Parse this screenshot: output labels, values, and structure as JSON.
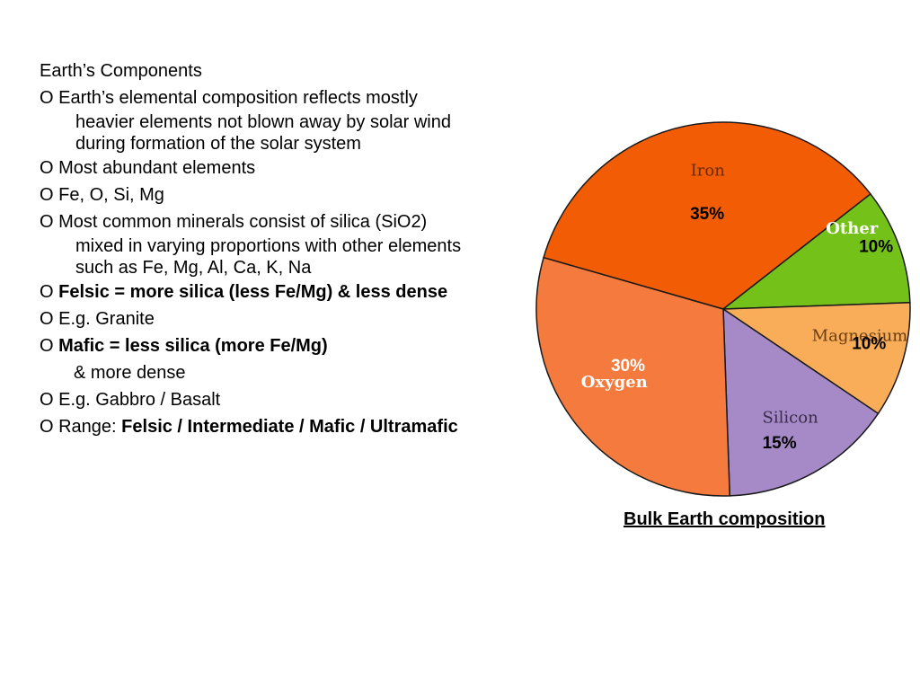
{
  "slide": {
    "heading": "Earth’s Components",
    "p1_a": "O Earth’s elemental composition reflects mostly",
    "p1_b": "heavier elements not blown away by solar wind",
    "p1_c": "during formation of the solar system",
    "p2": "O Most abundant elements",
    "p3": "O Fe, O, Si, Mg",
    "p4_a": "O Most common minerals consist of silica (SiO2)",
    "p4_b": "mixed in varying proportions with other elements",
    "p4_c": "such as Fe, Mg, Al, Ca, K, Na",
    "p5_prefix": "O ",
    "p5_bold": "Felsic = more silica (less Fe/Mg) & less dense",
    "p6": "O E.g. Granite",
    "p7_prefix": "O ",
    "p7_bold": "Mafic = less silica (more Fe/Mg)",
    "p7_cont": "& more dense",
    "p8": "O E.g. Gabbro / Basalt",
    "p9_prefix": "O Range: ",
    "p9_bold": "Felsic / Intermediate / Mafic / Ultramafic"
  },
  "chart_data": {
    "type": "pie",
    "caption": "Bulk Earth composition",
    "slices": [
      {
        "label": "Iron",
        "value": 35,
        "value_label": "35%",
        "color": "#f25c05"
      },
      {
        "label": "Other",
        "value": 10,
        "value_label": "10%",
        "color": "#74c219"
      },
      {
        "label": "Magnesium",
        "value": 10,
        "value_label": "10%",
        "color": "#f9ad58"
      },
      {
        "label": "Silicon",
        "value": 15,
        "value_label": "15%",
        "color": "#a68ac8"
      },
      {
        "label": "Oxygen",
        "value": 30,
        "value_label": "30%",
        "color": "#f47a3e"
      }
    ]
  }
}
